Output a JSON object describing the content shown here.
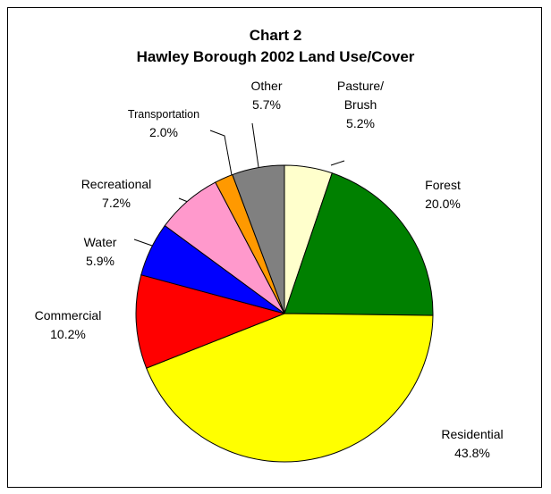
{
  "chart_data": {
    "type": "pie",
    "title": "Chart 2",
    "subtitle": "Hawley Borough 2002 Land Use/Cover",
    "categories": [
      "Pasture/\nBrush",
      "Forest",
      "Residential",
      "Commercial",
      "Water",
      "Recreational",
      "Transportation",
      "Other"
    ],
    "values": [
      5.2,
      20.0,
      43.8,
      10.2,
      5.9,
      7.2,
      2.0,
      5.7
    ],
    "value_labels": [
      "5.2%",
      "20.0%",
      "43.8%",
      "10.2%",
      "5.9%",
      "7.2%",
      "2.0%",
      "5.7%"
    ],
    "colors": [
      "#ffffcc",
      "#008000",
      "#ffff00",
      "#ff0000",
      "#0000ff",
      "#ff99cc",
      "#ff9900",
      "#808080"
    ]
  }
}
